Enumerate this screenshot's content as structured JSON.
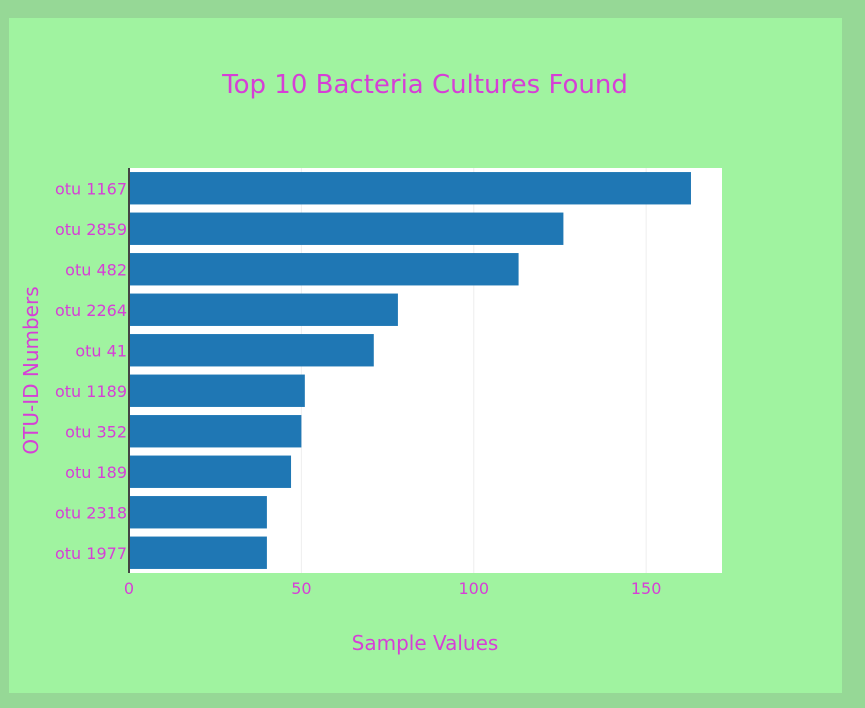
{
  "colors": {
    "page_background": "#96d896",
    "panel_background": "#a0f3a0",
    "plot_background": "#ffffff",
    "bar": "#1f77b4",
    "text": "#d63fd6",
    "grid": "#eeeeee",
    "axis_line": "#444444"
  },
  "chart_data": {
    "type": "bar",
    "orientation": "horizontal",
    "title": "Top 10 Bacteria Cultures Found",
    "xlabel": "Sample Values",
    "ylabel": "OTU-ID Numbers",
    "xlim": [
      0,
      172
    ],
    "xticks": [
      0,
      50,
      100,
      150
    ],
    "grid": true,
    "legend": "none",
    "categories": [
      "otu 1167",
      "otu 2859",
      "otu 482",
      "otu 2264",
      "otu 41",
      "otu 1189",
      "otu 352",
      "otu 189",
      "otu 2318",
      "otu 1977"
    ],
    "values": [
      163,
      126,
      113,
      78,
      71,
      51,
      50,
      47,
      40,
      40
    ]
  }
}
